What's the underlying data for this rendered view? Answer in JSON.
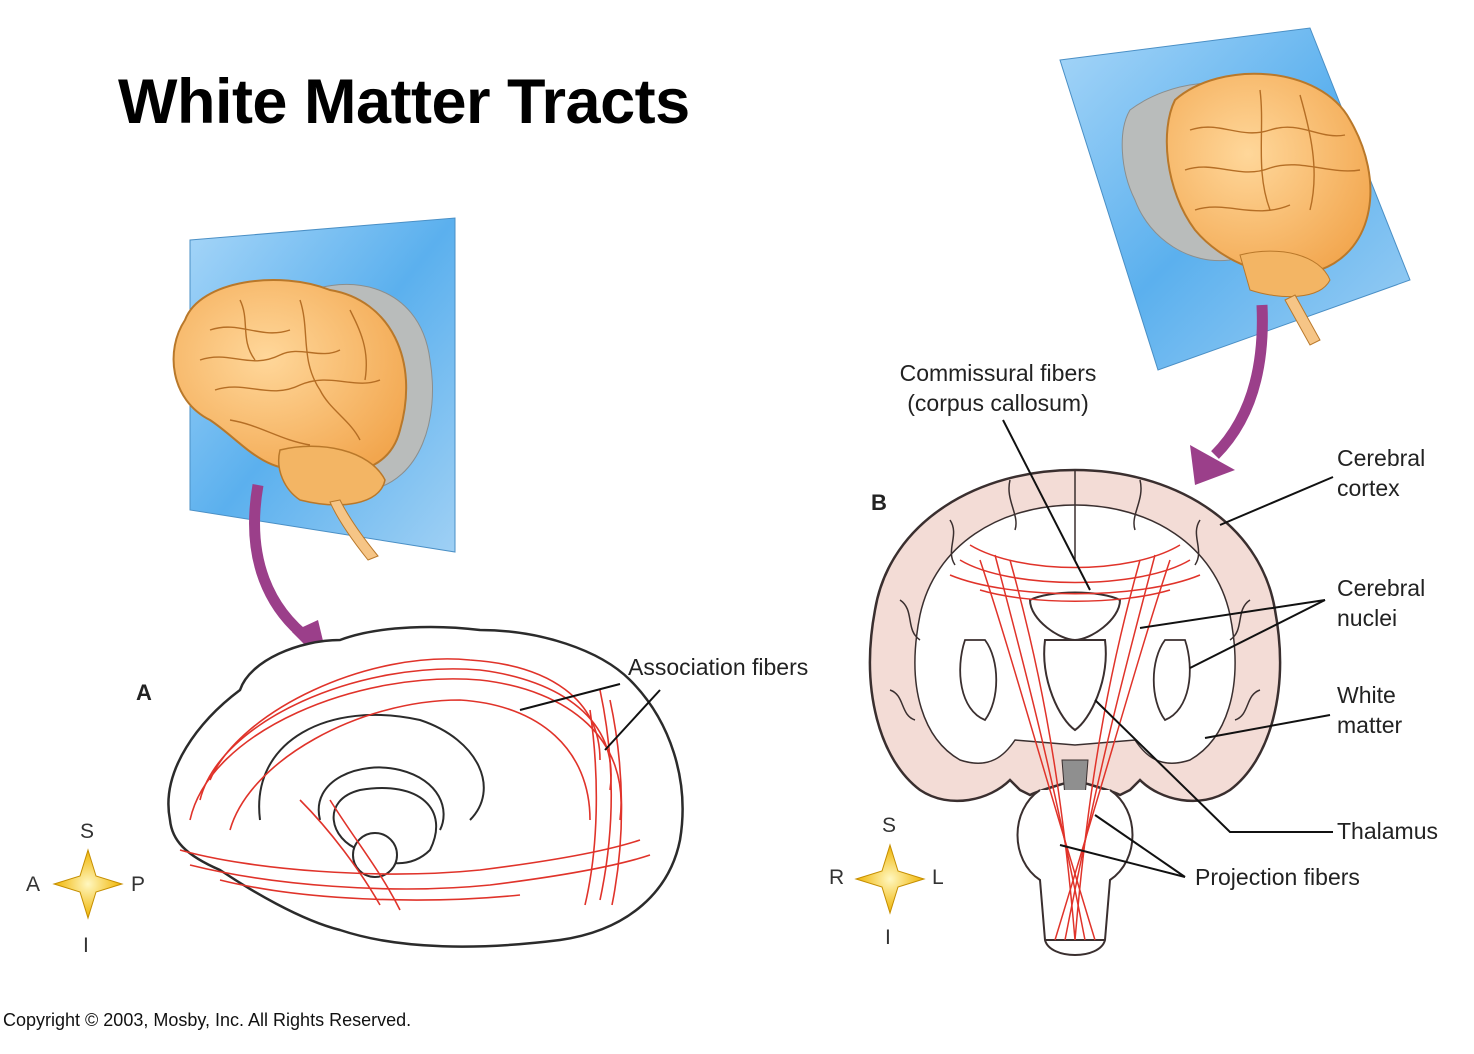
{
  "title": "White Matter Tracts",
  "panels": {
    "a": {
      "letter": "A",
      "labels": {
        "association": "Association fibers"
      },
      "compass": {
        "superior": "S",
        "inferior": "I",
        "anterior": "A",
        "posterior": "P"
      }
    },
    "b": {
      "letter": "B",
      "labels": {
        "commissural_line1": "Commissural fibers",
        "commissural_line2": "(corpus callosum)",
        "cortex_line1": "Cerebral",
        "cortex_line2": "cortex",
        "nuclei_line1": "Cerebral",
        "nuclei_line2": "nuclei",
        "white_line1": "White",
        "white_line2": "matter",
        "thalamus": "Thalamus",
        "projection": "Projection fibers"
      },
      "compass": {
        "superior": "S",
        "inferior": "I",
        "right": "R",
        "left": "L"
      }
    }
  },
  "copyright": "Copyright © 2003, Mosby, Inc. All Rights Reserved.",
  "colors": {
    "fiber": "#e0332a",
    "brain": "#f4b866",
    "tissue": "#f3dcd6",
    "arrow": "#a0418f",
    "plane": "#6fb9ee",
    "compass": "#f7cc17"
  }
}
